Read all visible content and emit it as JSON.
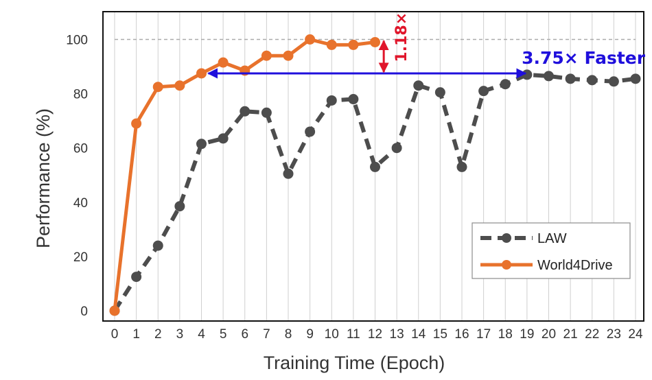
{
  "chart_data": {
    "type": "line",
    "xlabel": "Training Time (Epoch)",
    "ylabel": "Performance (%)",
    "x": [
      0,
      1,
      2,
      3,
      4,
      5,
      6,
      7,
      8,
      9,
      10,
      11,
      12,
      13,
      14,
      15,
      16,
      17,
      18,
      19,
      20,
      21,
      22,
      23,
      24
    ],
    "x_tick_labels": [
      "0",
      "1",
      "2",
      "3",
      "4",
      "5",
      "6",
      "7",
      "8",
      "9",
      "10",
      "11",
      "12",
      "13",
      "14",
      "15",
      "16",
      "17",
      "18",
      "19",
      "20",
      "21",
      "22",
      "23",
      "24"
    ],
    "ylim": [
      0,
      108
    ],
    "y_ticks": [
      0,
      20,
      40,
      60,
      80,
      100
    ],
    "y_tick_labels": [
      "0",
      "20",
      "40",
      "60",
      "80",
      "100"
    ],
    "grid": "vertical lines at each epoch; dashed reference line at 100",
    "legend_position": "lower-right",
    "series": [
      {
        "name": "LAW",
        "style": "dashed",
        "color": "#4d4d4d",
        "x": [
          0,
          1,
          2,
          3,
          4,
          5,
          6,
          7,
          8,
          9,
          10,
          11,
          12,
          13,
          14,
          15,
          16,
          17,
          18,
          19,
          20,
          21,
          22,
          23,
          24
        ],
        "values": [
          0,
          12.5,
          24,
          38.5,
          61.5,
          63.5,
          73.5,
          73,
          50.5,
          66,
          77.5,
          78,
          53,
          60,
          83,
          80.5,
          53,
          81,
          83.5,
          87,
          86.5,
          85.5,
          85,
          84.5,
          85.5
        ]
      },
      {
        "name": "World4Drive",
        "style": "solid",
        "color": "#e8722c",
        "x": [
          0,
          1,
          2,
          3,
          4,
          5,
          6,
          7,
          8,
          9,
          10,
          11,
          12
        ],
        "values": [
          0,
          69,
          82.5,
          83,
          87.5,
          91.5,
          88.5,
          94,
          94,
          100,
          98,
          98,
          99
        ]
      }
    ],
    "annotations": [
      {
        "text": "3.75× Faster",
        "color": "#1f0fdc",
        "type": "horizontal double arrow",
        "y": 87.5,
        "x_from": 4,
        "x_to": 19
      },
      {
        "text": "1.18×",
        "color": "#e0162b",
        "type": "vertical double arrow",
        "x": 12.4,
        "y_from": 87.5,
        "y_to": 100
      }
    ],
    "reference_line": {
      "y": 100,
      "style": "dashed",
      "color": "#aaaaaa"
    }
  }
}
